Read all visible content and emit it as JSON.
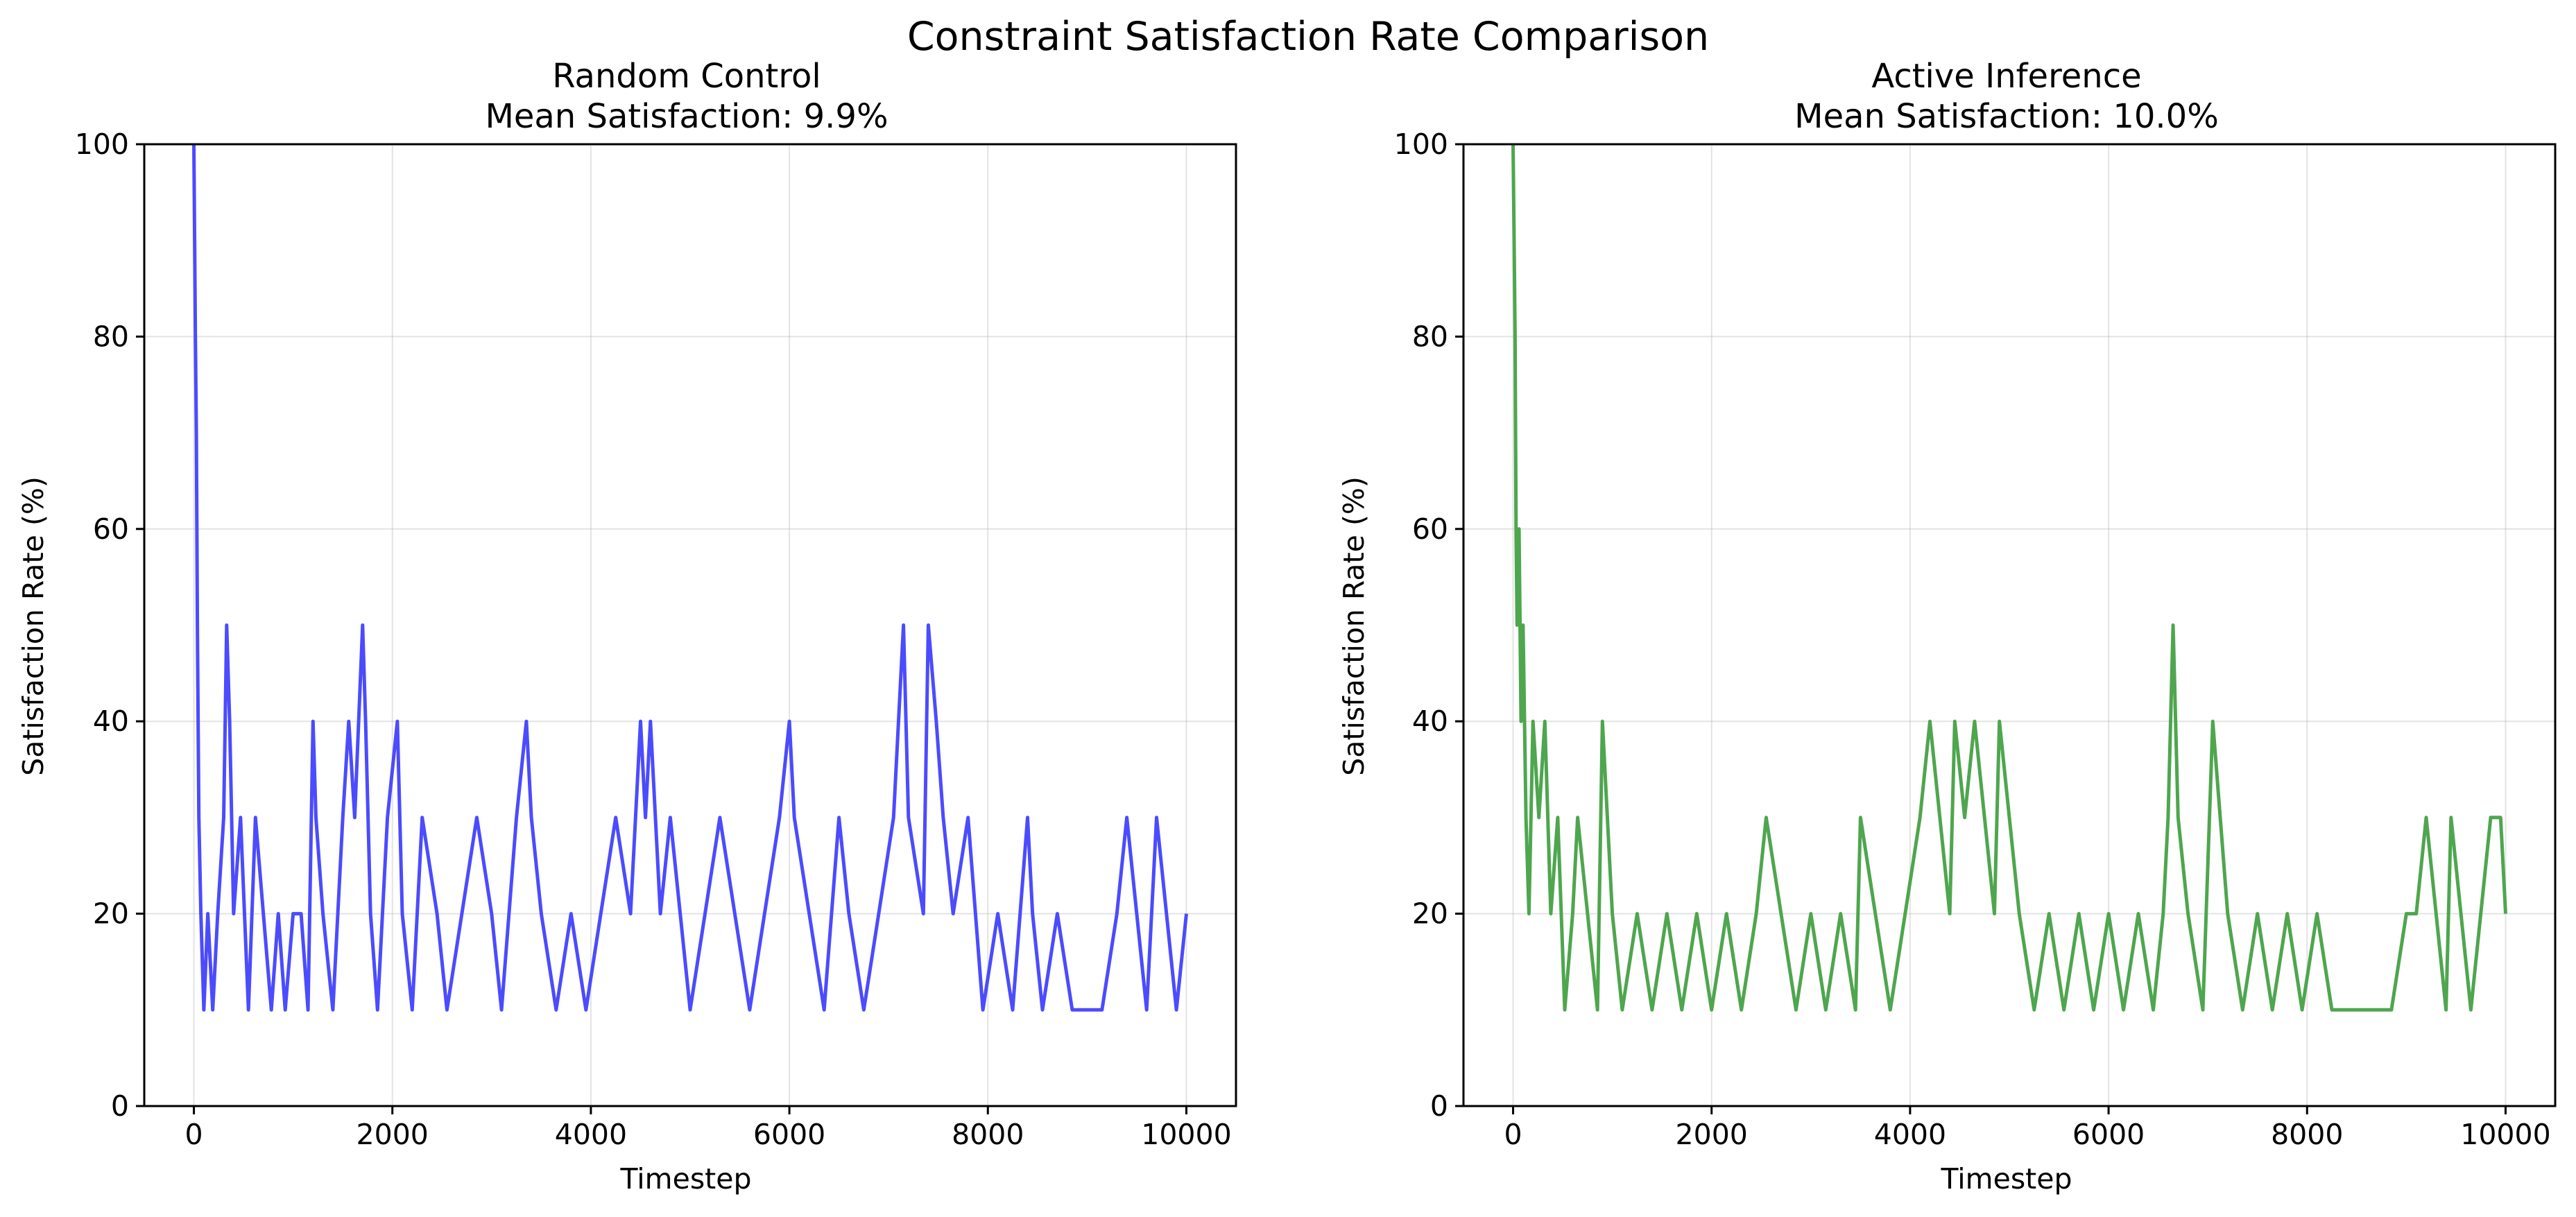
{
  "figure": {
    "title": "Constraint Satisfaction Rate Comparison"
  },
  "chart_data": [
    {
      "type": "line",
      "title_line1": "Random Control",
      "title_line2": "Mean Satisfaction: 9.9%",
      "xlabel": "Timestep",
      "ylabel": "Satisfaction Rate (%)",
      "xlim": [
        -500,
        10500
      ],
      "ylim": [
        0,
        100
      ],
      "xticks": [
        0,
        2000,
        4000,
        6000,
        8000,
        10000
      ],
      "yticks": [
        0,
        20,
        40,
        60,
        80,
        100
      ],
      "grid": true,
      "color": "#4b4bff",
      "series": [
        {
          "x": [
            0,
            15,
            25,
            35,
            50,
            70,
            100,
            140,
            190,
            240,
            300,
            330,
            360,
            400,
            470,
            550,
            620,
            700,
            780,
            850,
            920,
            1000,
            1080,
            1150,
            1200,
            1230,
            1300,
            1400,
            1500,
            1560,
            1620,
            1700,
            1730,
            1780,
            1850,
            1950,
            2050,
            2100,
            2200,
            2300,
            2450,
            2550,
            2700,
            2850,
            3000,
            3100,
            3250,
            3350,
            3400,
            3500,
            3650,
            3800,
            3950,
            4100,
            4250,
            4400,
            4500,
            4550,
            4600,
            4700,
            4800,
            4900,
            5000,
            5150,
            5300,
            5450,
            5600,
            5750,
            5900,
            6000,
            6050,
            6200,
            6350,
            6500,
            6600,
            6750,
            6900,
            7050,
            7150,
            7200,
            7350,
            7400,
            7480,
            7550,
            7650,
            7800,
            7950,
            8100,
            8250,
            8400,
            8450,
            8550,
            8700,
            8850,
            9000,
            9150,
            9300,
            9400,
            9500,
            9600,
            9700,
            9800,
            9900,
            10000
          ],
          "y": [
            100,
            80,
            70,
            50,
            30,
            20,
            10,
            20,
            10,
            20,
            30,
            50,
            40,
            20,
            30,
            10,
            30,
            20,
            10,
            20,
            10,
            20,
            20,
            10,
            40,
            30,
            20,
            10,
            30,
            40,
            30,
            50,
            40,
            20,
            10,
            30,
            40,
            20,
            10,
            30,
            20,
            10,
            20,
            30,
            20,
            10,
            30,
            40,
            30,
            20,
            10,
            20,
            10,
            20,
            30,
            20,
            40,
            30,
            40,
            20,
            30,
            20,
            10,
            20,
            30,
            20,
            10,
            20,
            30,
            40,
            30,
            20,
            10,
            30,
            20,
            10,
            20,
            30,
            50,
            30,
            20,
            50,
            40,
            30,
            20,
            30,
            10,
            20,
            10,
            30,
            20,
            10,
            20,
            10,
            10,
            10,
            20,
            30,
            20,
            10,
            30,
            20,
            10,
            20
          ]
        }
      ]
    },
    {
      "type": "line",
      "title_line1": "Active Inference",
      "title_line2": "Mean Satisfaction: 10.0%",
      "xlabel": "Timestep",
      "ylabel": "Satisfaction Rate (%)",
      "xlim": [
        -500,
        10500
      ],
      "ylim": [
        0,
        100
      ],
      "xticks": [
        0,
        2000,
        4000,
        6000,
        8000,
        10000
      ],
      "yticks": [
        0,
        20,
        40,
        60,
        80,
        100
      ],
      "grid": true,
      "color": "#4ea64e",
      "series": [
        {
          "x": [
            0,
            10,
            20,
            30,
            40,
            60,
            80,
            100,
            130,
            160,
            200,
            260,
            320,
            380,
            450,
            520,
            600,
            650,
            750,
            850,
            900,
            1000,
            1100,
            1250,
            1400,
            1550,
            1700,
            1850,
            2000,
            2150,
            2300,
            2450,
            2550,
            2700,
            2850,
            3000,
            3150,
            3300,
            3450,
            3500,
            3650,
            3800,
            3950,
            4100,
            4200,
            4300,
            4400,
            4450,
            4550,
            4650,
            4750,
            4850,
            4900,
            5000,
            5100,
            5250,
            5400,
            5550,
            5700,
            5850,
            6000,
            6150,
            6300,
            6450,
            6550,
            6600,
            6650,
            6700,
            6800,
            6950,
            7050,
            7200,
            7350,
            7500,
            7650,
            7800,
            7950,
            8100,
            8250,
            8400,
            8550,
            8700,
            8850,
            9000,
            9100,
            9200,
            9300,
            9400,
            9450,
            9550,
            9650,
            9750,
            9850,
            9950,
            10000
          ],
          "y": [
            100,
            90,
            80,
            60,
            50,
            60,
            40,
            50,
            30,
            20,
            40,
            30,
            40,
            20,
            30,
            10,
            20,
            30,
            20,
            10,
            40,
            20,
            10,
            20,
            10,
            20,
            10,
            20,
            10,
            20,
            10,
            20,
            30,
            20,
            10,
            20,
            10,
            20,
            10,
            30,
            20,
            10,
            20,
            30,
            40,
            30,
            20,
            40,
            30,
            40,
            30,
            20,
            40,
            30,
            20,
            10,
            20,
            10,
            20,
            10,
            20,
            10,
            20,
            10,
            20,
            30,
            50,
            30,
            20,
            10,
            40,
            20,
            10,
            20,
            10,
            20,
            10,
            20,
            10,
            10,
            10,
            10,
            10,
            20,
            20,
            30,
            20,
            10,
            30,
            20,
            10,
            20,
            30,
            30,
            20
          ]
        }
      ]
    }
  ]
}
